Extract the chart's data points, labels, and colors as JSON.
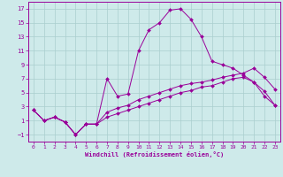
{
  "xlabel": "Windchill (Refroidissement éolien,°C)",
  "background_color": "#ceeaea",
  "grid_color": "#aacece",
  "line_color": "#990099",
  "x_ticks": [
    0,
    1,
    2,
    3,
    4,
    5,
    6,
    7,
    8,
    9,
    10,
    11,
    12,
    13,
    14,
    15,
    16,
    17,
    18,
    19,
    20,
    21,
    22,
    23
  ],
  "y_ticks": [
    -1,
    1,
    3,
    5,
    7,
    9,
    11,
    13,
    15,
    17
  ],
  "ylim": [
    -2.0,
    18.0
  ],
  "xlim": [
    -0.5,
    23.5
  ],
  "line1_x": [
    0,
    1,
    2,
    3,
    4,
    5,
    6,
    7,
    8,
    9,
    10,
    11,
    12,
    13,
    14,
    15,
    16,
    17,
    18,
    19,
    20,
    21,
    22,
    23
  ],
  "line1_y": [
    2.5,
    1.0,
    1.5,
    0.8,
    -1.0,
    0.5,
    0.5,
    7.0,
    4.5,
    4.8,
    11.0,
    14.0,
    15.0,
    16.8,
    17.0,
    15.5,
    13.0,
    9.5,
    9.0,
    8.5,
    7.5,
    6.5,
    5.2,
    3.2
  ],
  "line2_x": [
    0,
    1,
    2,
    3,
    4,
    5,
    6,
    7,
    8,
    9,
    10,
    11,
    12,
    13,
    14,
    15,
    16,
    17,
    18,
    19,
    20,
    21,
    22,
    23
  ],
  "line2_y": [
    2.5,
    1.0,
    1.5,
    0.8,
    -1.0,
    0.5,
    0.5,
    2.2,
    2.8,
    3.2,
    4.0,
    4.5,
    5.0,
    5.5,
    6.0,
    6.3,
    6.5,
    6.8,
    7.2,
    7.5,
    7.8,
    8.5,
    7.2,
    5.5
  ],
  "line3_x": [
    0,
    1,
    2,
    3,
    4,
    5,
    6,
    7,
    8,
    9,
    10,
    11,
    12,
    13,
    14,
    15,
    16,
    17,
    18,
    19,
    20,
    21,
    22,
    23
  ],
  "line3_y": [
    2.5,
    1.0,
    1.5,
    0.8,
    -1.0,
    0.5,
    0.5,
    1.5,
    2.0,
    2.5,
    3.0,
    3.5,
    4.0,
    4.5,
    5.0,
    5.3,
    5.8,
    6.0,
    6.5,
    7.0,
    7.2,
    6.5,
    4.5,
    3.2
  ]
}
